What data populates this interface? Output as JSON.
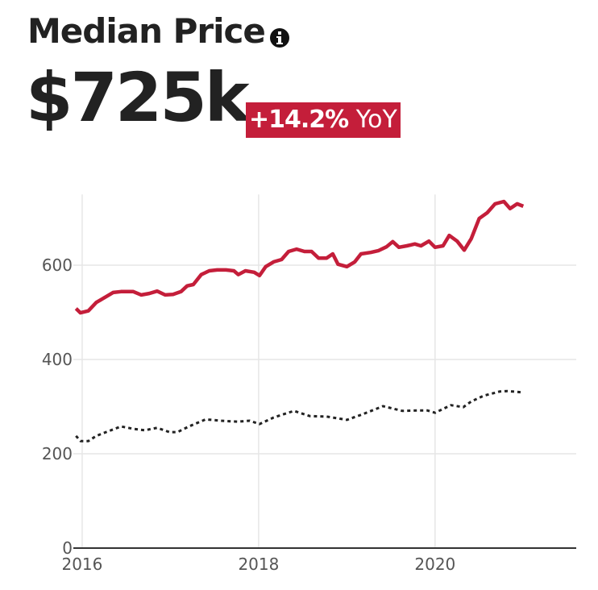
{
  "chart_data": {
    "type": "line",
    "title": "Median Price",
    "headline": "$725k",
    "change": "+14.2%",
    "change_label": "YoY",
    "xlim": [
      2015.9,
      2021.6
    ],
    "xticks": [
      2016,
      2018,
      2020
    ],
    "ylim": [
      0,
      750
    ],
    "yticks": [
      0,
      200,
      400,
      600
    ],
    "grid": true,
    "series": [
      {
        "color": "#c41e3a",
        "dashed": false,
        "x": [
          2015.93,
          2015.98,
          2016.07,
          2016.16,
          2016.26,
          2016.35,
          2016.44,
          2016.58,
          2016.67,
          2016.76,
          2016.85,
          2016.94,
          2017.03,
          2017.12,
          2017.19,
          2017.26,
          2017.35,
          2017.44,
          2017.53,
          2017.63,
          2017.72,
          2017.77,
          2017.85,
          2017.95,
          2018.01,
          2018.08,
          2018.17,
          2018.26,
          2018.34,
          2018.43,
          2018.52,
          2018.6,
          2018.68,
          2018.77,
          2018.84,
          2018.9,
          2019.0,
          2019.09,
          2019.16,
          2019.27,
          2019.36,
          2019.45,
          2019.52,
          2019.59,
          2019.68,
          2019.77,
          2019.84,
          2019.93,
          2020.0,
          2020.09,
          2020.16,
          2020.25,
          2020.33,
          2020.41,
          2020.5,
          2020.59,
          2020.68,
          2020.78,
          2020.85,
          2020.93,
          2021.0
        ],
        "values": [
          508,
          499,
          503,
          521,
          532,
          542,
          544,
          544,
          537,
          540,
          545,
          537,
          538,
          544,
          556,
          559,
          580,
          588,
          590,
          590,
          588,
          580,
          588,
          585,
          578,
          597,
          607,
          612,
          629,
          634,
          629,
          629,
          615,
          615,
          624,
          602,
          597,
          607,
          624,
          627,
          631,
          639,
          650,
          638,
          641,
          645,
          641,
          651,
          638,
          641,
          663,
          651,
          632,
          656,
          699,
          711,
          730,
          735,
          720,
          730,
          725
        ]
      },
      {
        "color": "#222222",
        "dashed": true,
        "x": [
          2015.93,
          2015.98,
          2016.07,
          2016.16,
          2016.3,
          2016.44,
          2016.58,
          2016.71,
          2016.85,
          2016.99,
          2017.08,
          2017.21,
          2017.4,
          2017.58,
          2017.76,
          2017.9,
          2018.01,
          2018.17,
          2018.4,
          2018.58,
          2018.77,
          2019.0,
          2019.18,
          2019.41,
          2019.63,
          2019.82,
          2019.91,
          2020.0,
          2020.18,
          2020.32,
          2020.41,
          2020.55,
          2020.73,
          2020.82,
          2021.0
        ],
        "values": [
          238,
          227,
          227,
          238,
          248,
          258,
          253,
          250,
          255,
          246,
          246,
          258,
          273,
          270,
          268,
          270,
          263,
          277,
          291,
          280,
          279,
          272,
          284,
          301,
          291,
          292,
          292,
          287,
          303,
          299,
          311,
          323,
          332,
          333,
          330
        ]
      }
    ]
  }
}
